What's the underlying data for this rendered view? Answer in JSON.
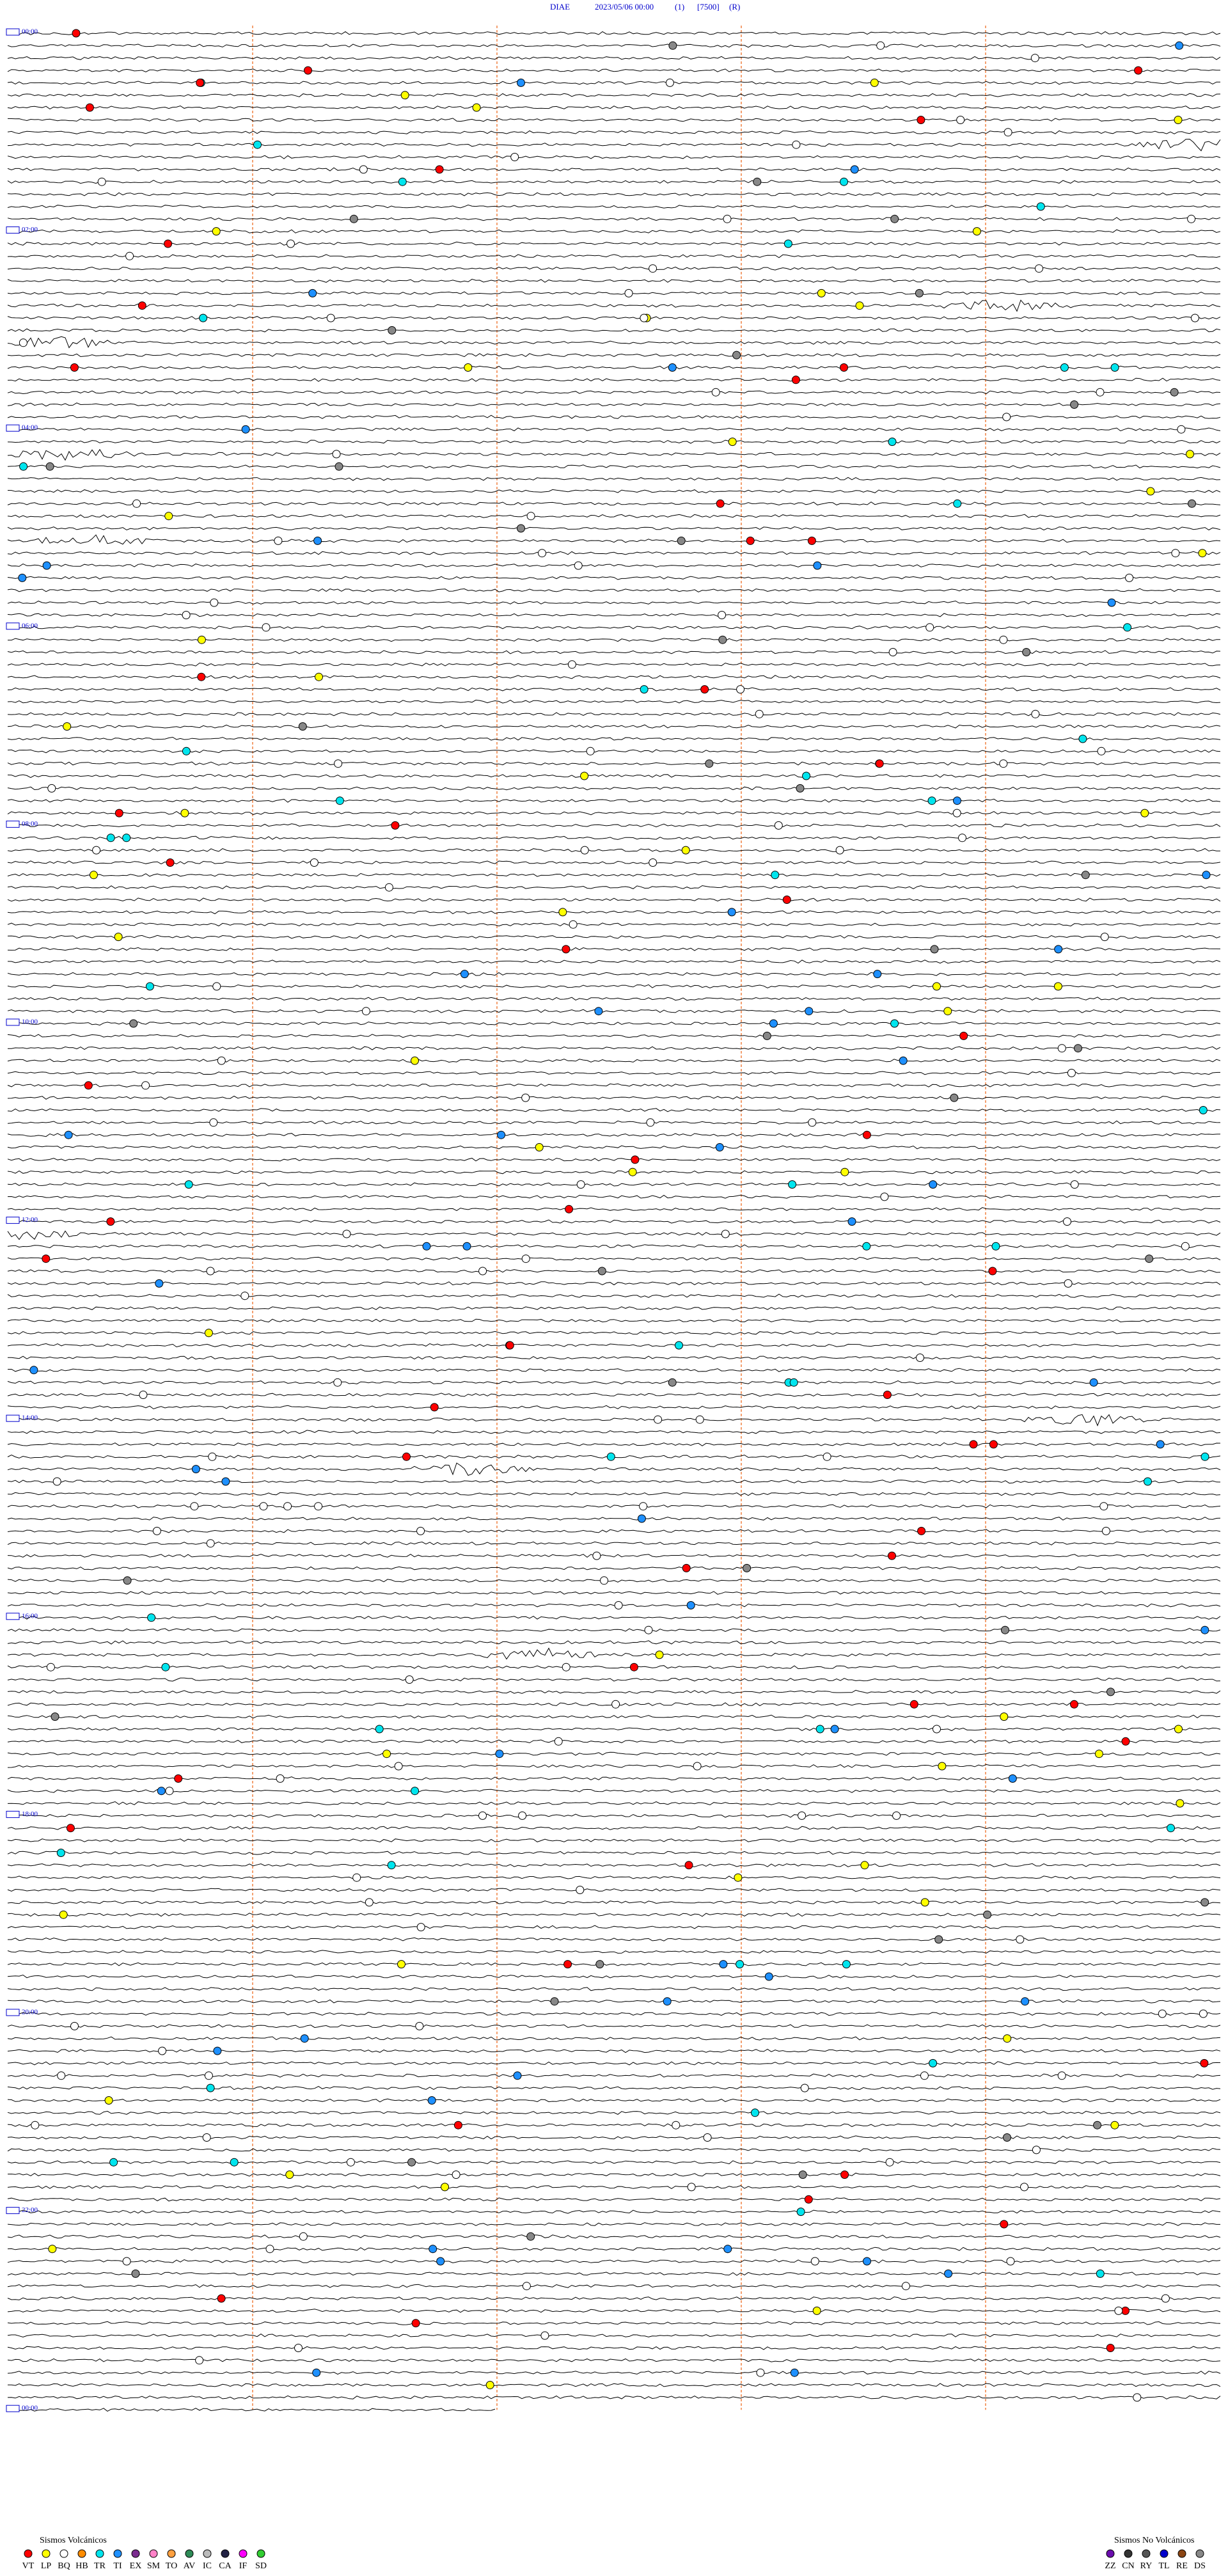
{
  "header": {
    "station": "DIAE",
    "datetime": "2023/05/06 00:00",
    "component": "(1)",
    "scale": "[7500]",
    "mode": "(R)"
  },
  "hour_labels": [
    "00:00",
    "02:00",
    "04:00",
    "06:00",
    "08:00",
    "10:00",
    "12:00",
    "14:00",
    "16:00",
    "18:00",
    "20:00",
    "22:00",
    "00:00"
  ],
  "legend_volcanic": {
    "title": "Sismos Volcánicos",
    "items": [
      {
        "label": "VT",
        "color": "#ff0000"
      },
      {
        "label": "LP",
        "color": "#ffff00"
      },
      {
        "label": "BQ",
        "color": "#ffffff"
      },
      {
        "label": "HB",
        "color": "#ff8c00"
      },
      {
        "label": "TR",
        "color": "#00e5ee"
      },
      {
        "label": "TI",
        "color": "#1e90ff"
      },
      {
        "label": "EX",
        "color": "#7b2c8f"
      },
      {
        "label": "SM",
        "color": "#ff82c8"
      },
      {
        "label": "TO",
        "color": "#ffa040"
      },
      {
        "label": "AV",
        "color": "#2e8b57"
      },
      {
        "label": "IC",
        "color": "#bbbbbb"
      },
      {
        "label": "CA",
        "color": "#222244"
      },
      {
        "label": "IF",
        "color": "#ff00ff"
      },
      {
        "label": "SD",
        "color": "#32cd32"
      }
    ]
  },
  "legend_nonvolcanic": {
    "title": "Sismos No Volcánicos",
    "items": [
      {
        "label": "ZZ",
        "color": "#6a0dad"
      },
      {
        "label": "CN",
        "color": "#333333"
      },
      {
        "label": "RY",
        "color": "#555555"
      },
      {
        "label": "TL",
        "color": "#0000cc"
      },
      {
        "label": "RE",
        "color": "#8b4513"
      },
      {
        "label": "DS",
        "color": "#888888"
      }
    ]
  }
}
